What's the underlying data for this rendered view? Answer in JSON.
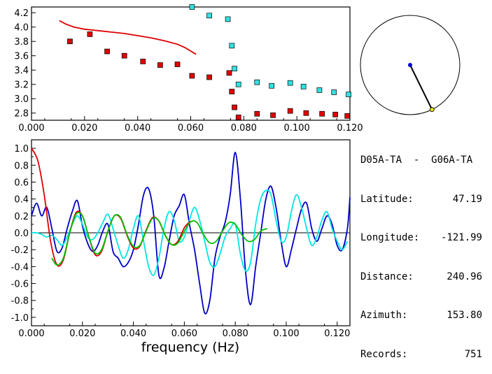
{
  "colors": {
    "red": "#e00000",
    "cyan": "#00e6e6",
    "blue": "#0000c8",
    "green": "#00c000",
    "marker_red": "#e00000",
    "marker_cyan": "#33e0e0",
    "compass_line": "#000000",
    "station_dot": "#0000c8",
    "end_dot": "#e6e600"
  },
  "info": {
    "station_pair": "D05A-TA  -  G06A-TA",
    "latitude_label": "Latitude:",
    "latitude_value": "47.19",
    "longitude_label": "Longitude:",
    "longitude_value": "-121.99",
    "distance_label": "Distance:",
    "distance_value": "240.96",
    "azimuth_label": "Azimuth:",
    "azimuth_value": "153.80",
    "records_label": "Records:",
    "records_value": "751"
  },
  "compass": {
    "azimuth_deg": 153.8
  },
  "chart_data": [
    {
      "type": "scatter",
      "title": "",
      "xlabel": "",
      "ylabel": "",
      "xlim": [
        0.0,
        0.12
      ],
      "ylim": [
        2.7,
        4.28
      ],
      "x_ticks": [
        "0.000",
        "0.020",
        "0.040",
        "0.060",
        "0.080",
        "0.100",
        "0.120"
      ],
      "y_ticks": [
        "2.8",
        "3.0",
        "3.2",
        "3.4",
        "3.6",
        "3.8",
        "4.0",
        "4.2"
      ],
      "series": [
        {
          "kind": "line",
          "color": "red",
          "points": [
            [
              0.0105,
              4.09
            ],
            [
              0.013,
              4.04
            ],
            [
              0.016,
              4.0
            ],
            [
              0.02,
              3.97
            ],
            [
              0.025,
              3.95
            ],
            [
              0.03,
              3.93
            ],
            [
              0.035,
              3.91
            ],
            [
              0.04,
              3.88
            ],
            [
              0.045,
              3.85
            ],
            [
              0.05,
              3.81
            ],
            [
              0.055,
              3.76
            ],
            [
              0.058,
              3.71
            ],
            [
              0.062,
              3.62
            ]
          ]
        },
        {
          "kind": "markers",
          "color": "marker_red",
          "points": [
            [
              0.0145,
              3.8
            ],
            [
              0.022,
              3.9
            ],
            [
              0.0285,
              3.66
            ],
            [
              0.035,
              3.6
            ],
            [
              0.042,
              3.52
            ],
            [
              0.0485,
              3.47
            ],
            [
              0.055,
              3.48
            ],
            [
              0.0605,
              3.32
            ],
            [
              0.067,
              3.3
            ],
            [
              0.0745,
              3.36
            ],
            [
              0.0755,
              3.1
            ],
            [
              0.0765,
              2.88
            ],
            [
              0.078,
              2.74
            ],
            [
              0.085,
              2.79
            ],
            [
              0.091,
              2.77
            ],
            [
              0.0975,
              2.83
            ],
            [
              0.1035,
              2.8
            ],
            [
              0.1095,
              2.79
            ],
            [
              0.1145,
              2.78
            ],
            [
              0.119,
              2.76
            ]
          ]
        },
        {
          "kind": "markers",
          "color": "marker_cyan",
          "points": [
            [
              0.0605,
              4.28
            ],
            [
              0.067,
              4.16
            ],
            [
              0.074,
              4.11
            ],
            [
              0.0755,
              3.74
            ],
            [
              0.0765,
              3.42
            ],
            [
              0.078,
              3.2
            ],
            [
              0.085,
              3.23
            ],
            [
              0.0905,
              3.18
            ],
            [
              0.0975,
              3.22
            ],
            [
              0.1025,
              3.17
            ],
            [
              0.1085,
              3.12
            ],
            [
              0.114,
              3.09
            ],
            [
              0.1195,
              3.06
            ]
          ]
        }
      ]
    },
    {
      "type": "line",
      "title": "",
      "xlabel": "frequency  (Hz)",
      "ylabel": "",
      "xlim": [
        0.0,
        0.125
      ],
      "ylim": [
        -1.1,
        1.1
      ],
      "x_ticks": [
        "0.000",
        "0.020",
        "0.040",
        "0.060",
        "0.080",
        "0.100",
        "0.120"
      ],
      "y_ticks": [
        "1.0",
        "0.8",
        "0.6",
        "0.4",
        "0.2",
        "0.0",
        "-0.2",
        "-0.4",
        "-0.6",
        "-0.8",
        "-1.0"
      ],
      "series": [
        {
          "color": "blue",
          "x": [
            0.0,
            0.002,
            0.004,
            0.006,
            0.008,
            0.01,
            0.012,
            0.014,
            0.016,
            0.018,
            0.02,
            0.022,
            0.024,
            0.026,
            0.028,
            0.03,
            0.032,
            0.034,
            0.036,
            0.038,
            0.04,
            0.042,
            0.044,
            0.046,
            0.048,
            0.05,
            0.052,
            0.054,
            0.056,
            0.058,
            0.06,
            0.062,
            0.064,
            0.066,
            0.068,
            0.07,
            0.072,
            0.074,
            0.076,
            0.078,
            0.08,
            0.082,
            0.084,
            0.086,
            0.088,
            0.09,
            0.092,
            0.094,
            0.096,
            0.098,
            0.1,
            0.102,
            0.104,
            0.106,
            0.108,
            0.11,
            0.112,
            0.114,
            0.116,
            0.118,
            0.12,
            0.122,
            0.124,
            0.125
          ],
          "y": [
            0.2,
            0.35,
            0.2,
            0.3,
            0.05,
            -0.22,
            -0.18,
            0.05,
            0.25,
            0.38,
            0.08,
            -0.12,
            -0.22,
            -0.15,
            0.02,
            0.1,
            -0.22,
            -0.3,
            -0.4,
            -0.35,
            -0.2,
            0.1,
            0.45,
            0.52,
            0.2,
            -0.5,
            -0.42,
            -0.1,
            0.2,
            0.32,
            0.45,
            0.1,
            -0.2,
            -0.6,
            -0.95,
            -0.8,
            -0.3,
            -0.05,
            0.12,
            0.45,
            0.95,
            0.4,
            -0.45,
            -0.85,
            -0.4,
            0.0,
            0.4,
            0.55,
            0.3,
            -0.1,
            -0.4,
            -0.2,
            0.05,
            0.28,
            0.35,
            0.05,
            -0.1,
            0.05,
            0.2,
            0.1,
            -0.15,
            -0.2,
            0.05,
            0.42
          ]
        },
        {
          "color": "cyan",
          "x": [
            0.0,
            0.002,
            0.004,
            0.006,
            0.008,
            0.01,
            0.012,
            0.014,
            0.016,
            0.018,
            0.02,
            0.022,
            0.024,
            0.026,
            0.028,
            0.03,
            0.032,
            0.034,
            0.036,
            0.038,
            0.04,
            0.042,
            0.044,
            0.046,
            0.048,
            0.05,
            0.052,
            0.054,
            0.056,
            0.058,
            0.06,
            0.062,
            0.064,
            0.066,
            0.068,
            0.07,
            0.072,
            0.074,
            0.076,
            0.078,
            0.08,
            0.082,
            0.084,
            0.086,
            0.088,
            0.09,
            0.092,
            0.094,
            0.096,
            0.098,
            0.1,
            0.102,
            0.104,
            0.106,
            0.108,
            0.11,
            0.112,
            0.114,
            0.116,
            0.118,
            0.12,
            0.122,
            0.124
          ],
          "y": [
            0.0,
            0.0,
            -0.02,
            -0.05,
            -0.03,
            -0.08,
            -0.15,
            -0.05,
            0.1,
            0.2,
            0.1,
            -0.05,
            -0.08,
            0.0,
            0.12,
            0.22,
            0.05,
            -0.15,
            -0.3,
            -0.2,
            0.05,
            0.2,
            -0.1,
            -0.4,
            -0.5,
            -0.3,
            0.05,
            0.25,
            0.15,
            -0.1,
            -0.05,
            0.15,
            0.3,
            0.15,
            -0.1,
            -0.35,
            -0.4,
            -0.25,
            -0.05,
            0.05,
            0.1,
            -0.25,
            -0.45,
            -0.35,
            0.1,
            0.4,
            0.5,
            0.45,
            0.15,
            -0.1,
            -0.05,
            0.25,
            0.45,
            0.3,
            0.05,
            -0.15,
            -0.05,
            0.15,
            0.25,
            0.05,
            -0.1,
            -0.2,
            -0.1
          ]
        },
        {
          "color": "red",
          "x": [
            0.0,
            0.0025,
            0.005,
            0.0075,
            0.01,
            0.0125,
            0.015,
            0.0175,
            0.02,
            0.0225,
            0.025,
            0.0275,
            0.03,
            0.0325,
            0.035,
            0.0375,
            0.04,
            0.0425,
            0.045,
            0.0475,
            0.05,
            0.0525,
            0.055,
            0.0575,
            0.06,
            0.0625
          ],
          "y": [
            1.0,
            0.85,
            0.45,
            -0.1,
            -0.38,
            -0.32,
            0.0,
            0.24,
            0.2,
            -0.05,
            -0.26,
            -0.22,
            0.02,
            0.2,
            0.17,
            -0.03,
            -0.18,
            -0.16,
            0.03,
            0.18,
            0.14,
            -0.03,
            -0.14,
            -0.1,
            0.06,
            0.14
          ]
        },
        {
          "color": "green",
          "x": [
            0.008,
            0.01,
            0.0125,
            0.015,
            0.0175,
            0.02,
            0.0225,
            0.025,
            0.0275,
            0.03,
            0.0325,
            0.035,
            0.0375,
            0.04,
            0.0425,
            0.045,
            0.0475,
            0.05,
            0.0525,
            0.055,
            0.0575,
            0.06,
            0.0625,
            0.065,
            0.0675,
            0.07,
            0.0725,
            0.075,
            0.0775,
            0.08,
            0.0825,
            0.085,
            0.0875,
            0.09,
            0.0925
          ],
          "y": [
            -0.3,
            -0.38,
            -0.3,
            0.0,
            0.22,
            0.2,
            -0.05,
            -0.24,
            -0.2,
            0.02,
            0.2,
            0.18,
            -0.02,
            -0.16,
            -0.15,
            0.02,
            0.17,
            0.14,
            -0.03,
            -0.14,
            -0.12,
            0.02,
            0.13,
            0.12,
            -0.02,
            -0.12,
            -0.1,
            0.02,
            0.12,
            0.1,
            -0.02,
            -0.1,
            -0.08,
            0.02,
            0.05
          ]
        }
      ]
    }
  ]
}
